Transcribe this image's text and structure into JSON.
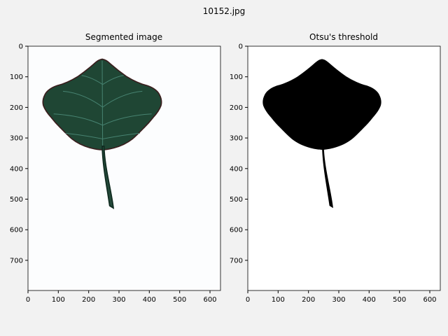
{
  "figure": {
    "title": "10152.jpg",
    "background": "#f2f2f2"
  },
  "panels": [
    {
      "title": "Segmented image",
      "content": "leaf-photo",
      "xticks": [
        "0",
        "100",
        "200",
        "300",
        "400",
        "500",
        "600"
      ],
      "yticks": [
        "0",
        "100",
        "200",
        "300",
        "400",
        "500",
        "600",
        "700"
      ],
      "colors": {
        "leaf": "#1f4634",
        "vein": "#4c8a78",
        "edge": "#3a1e1e"
      }
    },
    {
      "title": "Otsu's threshold",
      "content": "binary-mask",
      "xticks": [
        "0",
        "100",
        "200",
        "300",
        "400",
        "500",
        "600"
      ],
      "yticks": [
        "0",
        "100",
        "200",
        "300",
        "400",
        "500",
        "600",
        "700"
      ],
      "colors": {
        "mask": "#000000",
        "background": "#ffffff"
      }
    }
  ]
}
